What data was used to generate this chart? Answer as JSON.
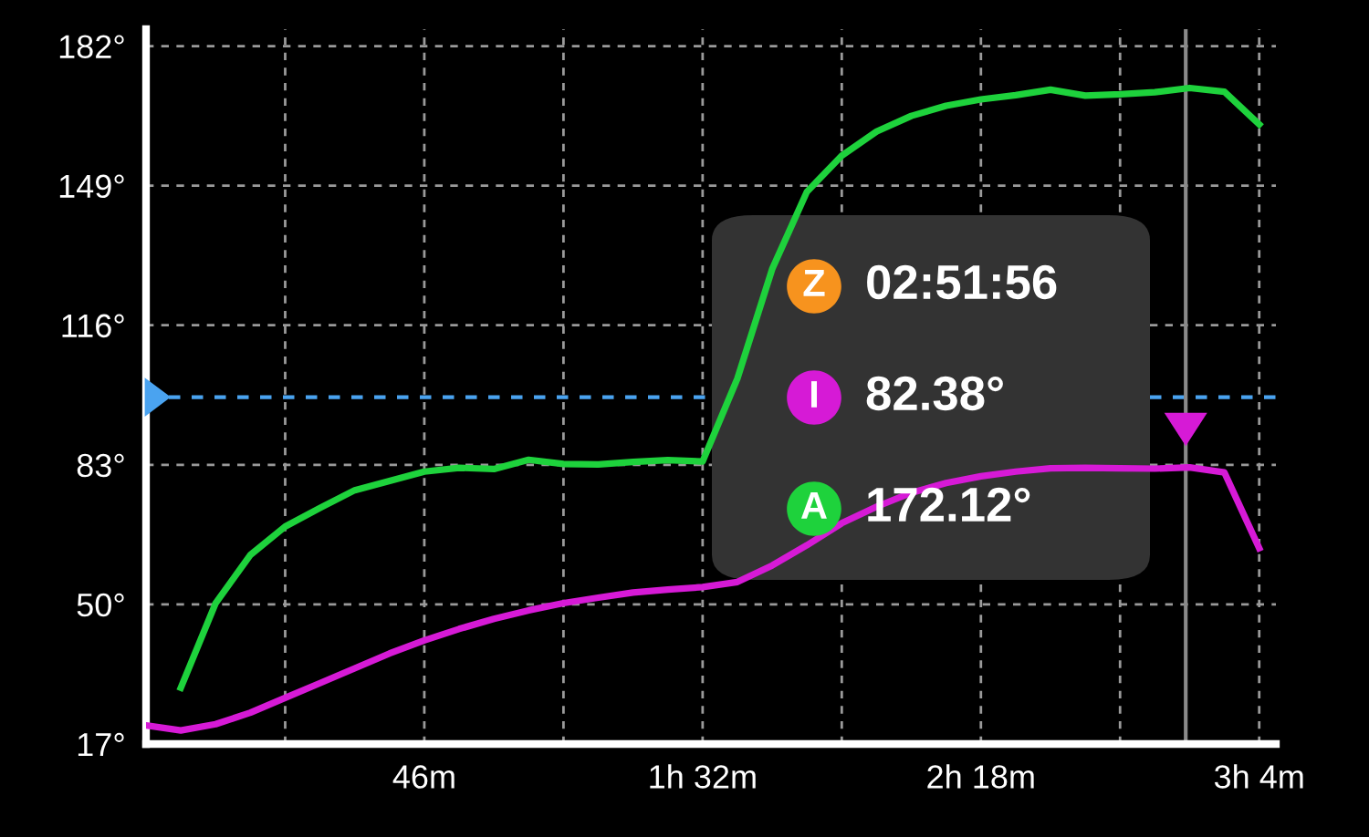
{
  "chart_data": {
    "type": "line",
    "ylim": [
      17,
      186
    ],
    "categories": [
      null,
      null,
      null,
      null,
      null,
      null,
      null,
      null,
      "46m",
      null,
      null,
      null,
      null,
      null,
      null,
      null,
      "1h 32m",
      null,
      null,
      null,
      null,
      null,
      null,
      null,
      "2h 18m",
      null,
      null,
      null,
      null,
      null,
      null,
      null,
      "3h 4m"
    ],
    "yticks": [
      {
        "value": 17,
        "label": "17°"
      },
      {
        "value": 50,
        "label": "50°"
      },
      {
        "value": 83,
        "label": "83°"
      },
      {
        "value": 116,
        "label": "116°"
      },
      {
        "value": 149,
        "label": "149°"
      },
      {
        "value": 182,
        "label": "182°"
      }
    ],
    "grid": true,
    "line_style": "solid",
    "marker": "none",
    "series": [
      {
        "name": "I",
        "color": "#d61ad6",
        "values": [
          21.4,
          20.2,
          21.7,
          24.4,
          27.9,
          31.4,
          34.9,
          38.4,
          41.5,
          44.2,
          46.6,
          48.6,
          50.3,
          51.6,
          52.8,
          53.5,
          54.1,
          55.3,
          59.2,
          64.0,
          69.2,
          73.1,
          76.4,
          78.7,
          80.3,
          81.4,
          82.2,
          82.3,
          82.2,
          82.1,
          82.4,
          81.2,
          63.3
        ]
      },
      {
        "name": "A",
        "color": "#1ed23c",
        "values": [
          null,
          30.3,
          50.3,
          61.7,
          68.4,
          72.8,
          77.0,
          79.2,
          81.4,
          82.3,
          82.0,
          84.2,
          83.2,
          83.1,
          83.7,
          84.1,
          83.8,
          103.4,
          129.3,
          147.6,
          156.1,
          161.8,
          165.5,
          167.9,
          169.4,
          170.4,
          171.7,
          170.3,
          170.6,
          171.1,
          172.1,
          171.2,
          163.5
        ]
      }
    ],
    "ref_lines": [
      {
        "axis": "y",
        "value": 99,
        "color": "#4aa3f0",
        "line_style": "dashed"
      }
    ],
    "annotations": [
      "Z",
      "02:51:56",
      "82.38°",
      "172.12°"
    ]
  }
}
